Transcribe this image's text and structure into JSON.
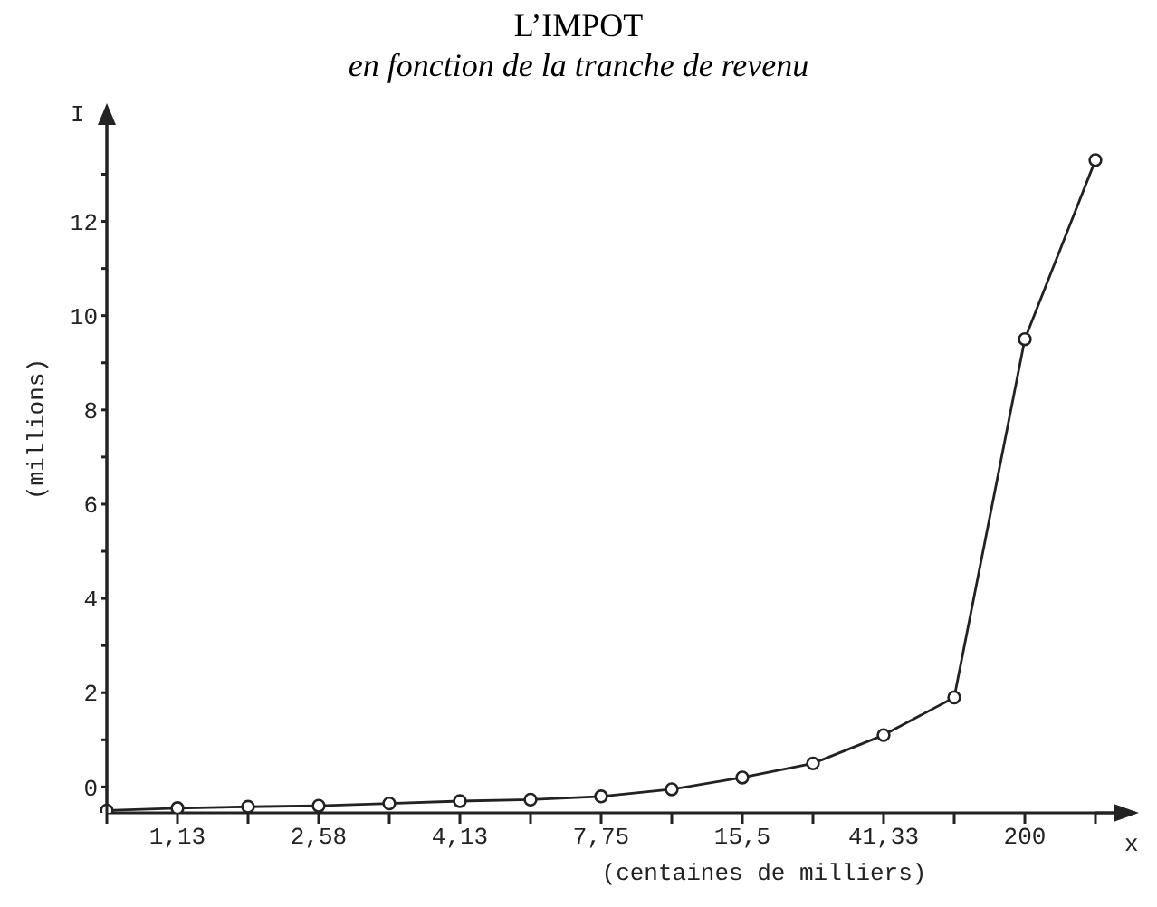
{
  "chart_data": {
    "type": "line",
    "title": "L’IMPOT",
    "subtitle": "en fonction de la tranche de revenu",
    "xlabel": "(centaines de milliers)",
    "ylabel": "(millions)",
    "annotations": [
      "I",
      "x"
    ],
    "categories": [
      null,
      "1,13",
      null,
      "2,58",
      null,
      "4,13",
      null,
      "7,75",
      null,
      "15,5",
      null,
      "41,33",
      null,
      "200",
      null
    ],
    "series": [
      {
        "color": "#222222",
        "values": [
          -0.5,
          -0.45,
          -0.42,
          -0.4,
          -0.35,
          -0.3,
          -0.27,
          -0.2,
          -0.05,
          0.2,
          0.5,
          1.1,
          1.9,
          9.5,
          13.3
        ]
      }
    ],
    "ylim": [
      -0.55,
      14.2
    ],
    "yticks": [
      0,
      {
        "value": 1,
        "label": null
      },
      2,
      {
        "value": 3,
        "label": null
      },
      4,
      {
        "value": 5,
        "label": null
      },
      6,
      {
        "value": 7,
        "label": null
      },
      8,
      {
        "value": 9,
        "label": null
      },
      10,
      {
        "value": 11,
        "label": null
      },
      12,
      {
        "value": 13,
        "label": null
      }
    ],
    "grid": false,
    "legend": false,
    "marker": "circle",
    "line_style": "solid"
  }
}
